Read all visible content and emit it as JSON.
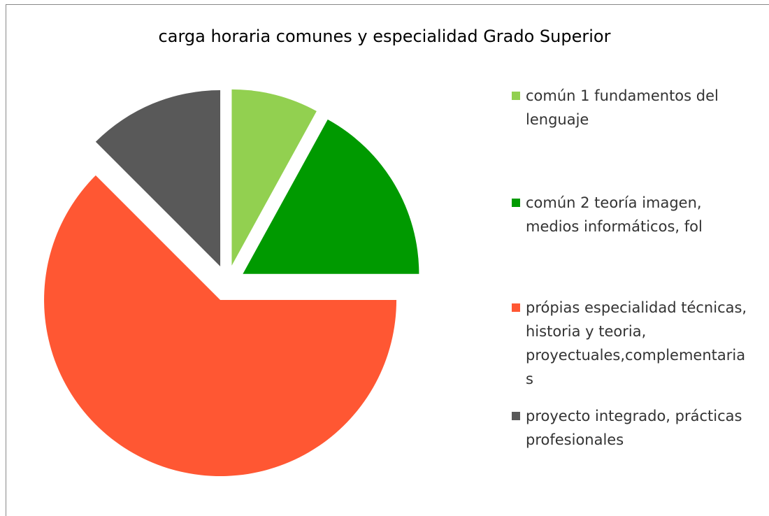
{
  "chart_data": {
    "type": "pie",
    "title": "carga horaria comunes y especialidad Grado Superior",
    "categories": [
      "común 1  fundamentos del lenguaje",
      "común 2 teoría imagen, medios informáticos, fol",
      "própias especialidad técnicas, historia y teoria, proyectuales,complementarias",
      "proyecto integrado, prácticas profesionales"
    ],
    "values": [
      8,
      17,
      62.5,
      12.5
    ],
    "colors": [
      "#92d050",
      "#009a00",
      "#ff5733",
      "#595959"
    ],
    "exploded": true
  }
}
